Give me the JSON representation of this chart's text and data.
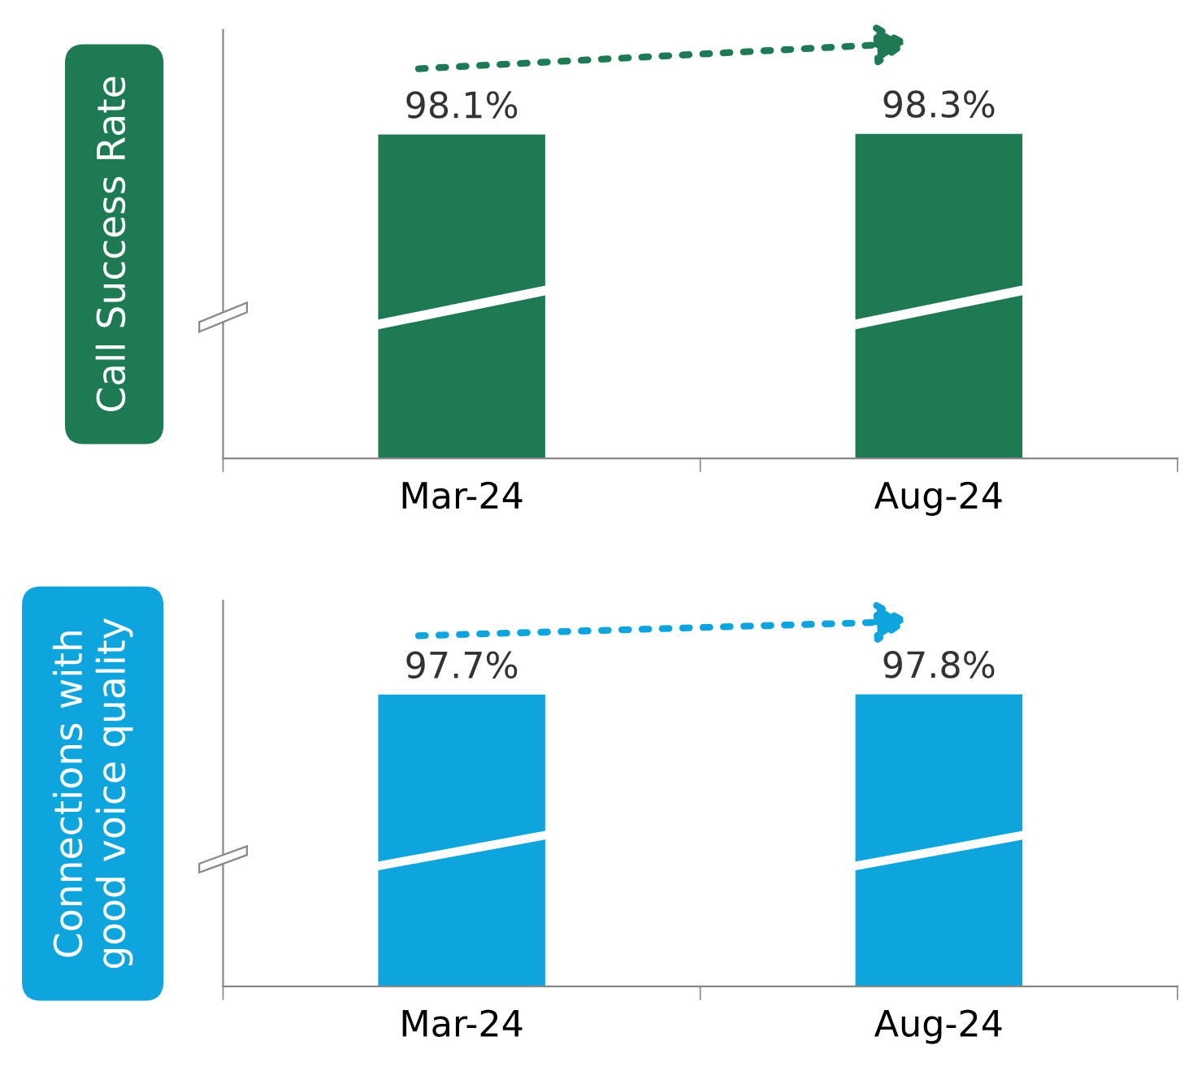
{
  "chart_data": [
    {
      "type": "bar",
      "ylabel": "Call Success Rate",
      "categories": [
        "Mar-24",
        "Aug-24"
      ],
      "values": [
        98.1,
        98.3
      ],
      "value_labels": [
        "98.1%",
        "98.3%"
      ],
      "color": "#1e7a53",
      "grid": false,
      "legend": false
    },
    {
      "type": "bar",
      "ylabel": "Connections with\ngood voice quality",
      "categories": [
        "Mar-24",
        "Aug-24"
      ],
      "values": [
        97.7,
        97.8
      ],
      "value_labels": [
        "97.7%",
        "97.8%"
      ],
      "color": "#0ea5de",
      "grid": false,
      "legend": false
    }
  ]
}
